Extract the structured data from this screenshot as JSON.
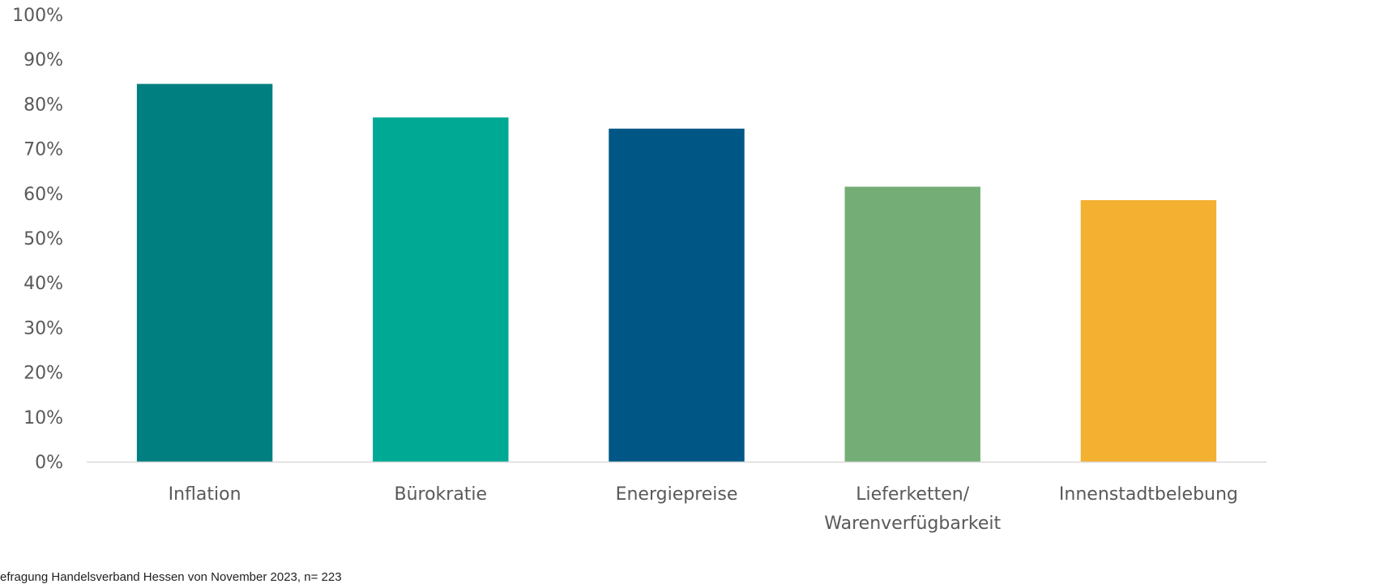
{
  "chart_data": {
    "type": "bar",
    "categories": [
      "Inflation",
      "Bürokratie",
      "Energiepreise",
      "Lieferketten/\nWarenverfügbarkeit",
      "Innenstadtbelebung"
    ],
    "values": [
      84.5,
      77,
      74.5,
      61.5,
      58.5
    ],
    "unit": "%",
    "ylim": [
      0,
      100
    ],
    "yticks": [
      0,
      10,
      20,
      30,
      40,
      50,
      60,
      70,
      80,
      90,
      100
    ],
    "ytick_labels": [
      "0%",
      "10%",
      "20%",
      "30%",
      "40%",
      "50%",
      "60%",
      "70%",
      "80%",
      "90%",
      "100%"
    ],
    "bar_colors": [
      "#007F80",
      "#00A994",
      "#005786",
      "#74AE76",
      "#F4B030"
    ],
    "axis_color": "#D9D9D9",
    "label_color": "#595959",
    "grid": false,
    "legend": "none",
    "title": "",
    "xlabel": "",
    "ylabel": ""
  },
  "footnote": "efragung Handelsverband Hessen von November 2023, n= 223"
}
